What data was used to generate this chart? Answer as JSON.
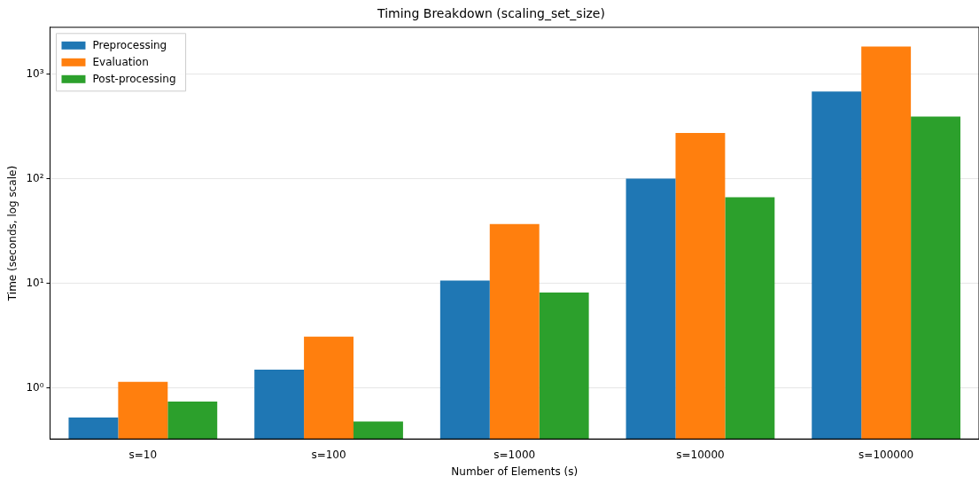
{
  "chart_data": {
    "type": "bar",
    "title": "Timing Breakdown (scaling_set_size)",
    "xlabel": "Number of Elements (s)",
    "ylabel": "Time (seconds, log scale)",
    "categories": [
      "s=10",
      "s=100",
      "s=1000",
      "s=10000",
      "s=100000"
    ],
    "series": [
      {
        "name": "Preprocessing",
        "color": "#1f77b4",
        "values": [
          0.52,
          1.49,
          10.6,
          100,
          681
        ]
      },
      {
        "name": "Evaluation",
        "color": "#ff7f0e",
        "values": [
          1.14,
          3.08,
          36.8,
          273,
          1837
        ]
      },
      {
        "name": "Post-processing",
        "color": "#2ca02c",
        "values": [
          0.74,
          0.475,
          8.15,
          66.5,
          392
        ]
      }
    ],
    "log": true,
    "ylim": [
      0.324,
      2800
    ],
    "yticks": [
      {
        "value": 1,
        "label": "10⁰"
      },
      {
        "value": 10,
        "label": "10¹"
      },
      {
        "value": 100,
        "label": "10²"
      },
      {
        "value": 1000,
        "label": "10³"
      }
    ],
    "grid": "y",
    "legend": "top left"
  }
}
